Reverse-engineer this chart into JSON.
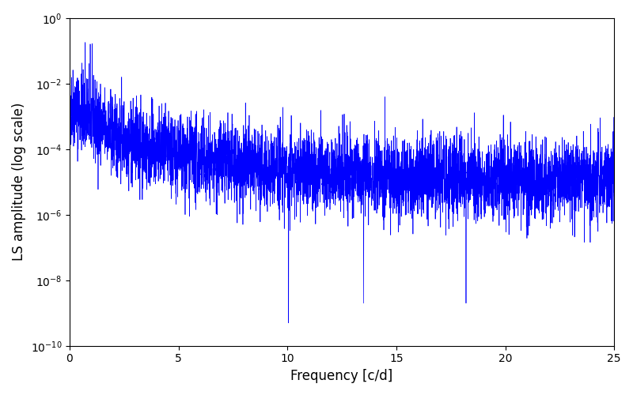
{
  "line_color": "#0000ff",
  "xlabel": "Frequency [c/d]",
  "ylabel": "LS amplitude (log scale)",
  "xlim": [
    0,
    25
  ],
  "ylim_log_min": -10,
  "ylim_log_max": 0,
  "background_color": "#ffffff",
  "freq_min": 0.0,
  "freq_max": 25.0,
  "n_points": 5000,
  "seed": 42,
  "noise_floor": 1e-05,
  "peak1_freq": 0.72,
  "peak1_height": 0.18,
  "peak2_freq": 0.95,
  "peak2_height": 0.16,
  "null1_freq": 10.05,
  "null1_depth": 5e-10,
  "null2_freq": 13.5,
  "null2_depth": 2e-09,
  "null3_freq": 18.2,
  "null3_depth": 2e-09
}
